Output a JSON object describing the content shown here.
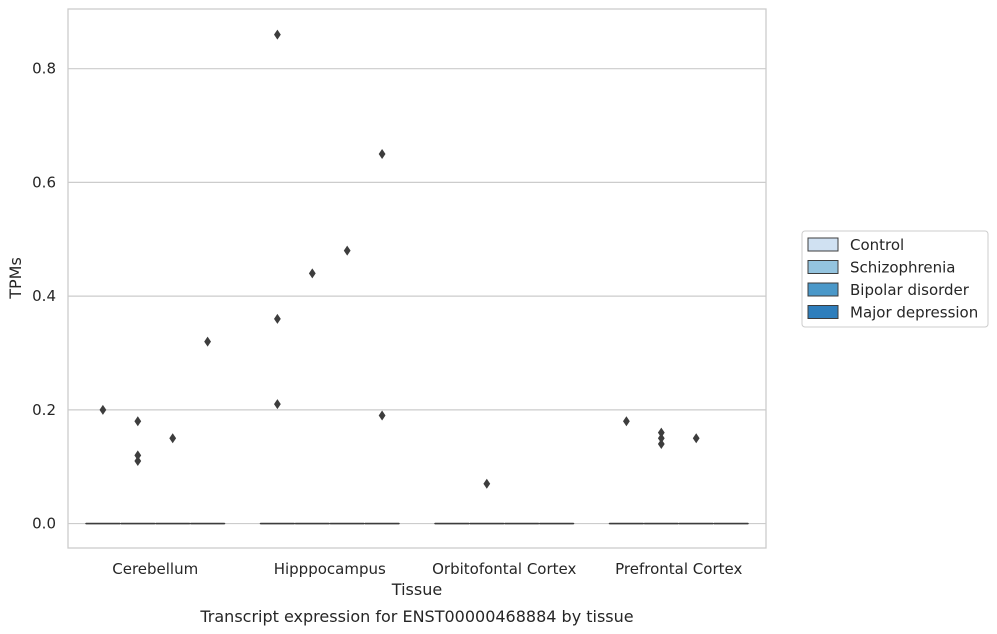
{
  "chart_data": {
    "type": "box",
    "title": "",
    "caption": "Transcript expression for ENST00000468884 by tissue",
    "xlabel": "Tissue",
    "ylabel": "TPMs",
    "categories": [
      "Cerebellum",
      "Hipppocampus",
      "Orbitofontal Cortex",
      "Prefrontal Cortex"
    ],
    "ylim": [
      -0.043,
      0.905
    ],
    "yticks": [
      0.0,
      0.2,
      0.4,
      0.6,
      0.8
    ],
    "ytick_labels": [
      "0.0",
      "0.2",
      "0.4",
      "0.6",
      "0.8"
    ],
    "grid": true,
    "legend_position": "right",
    "series": [
      {
        "name": "Control",
        "color": "#d0e1f2",
        "boxes": [
          {
            "median": 0,
            "q1": 0,
            "q3": 0
          },
          {
            "median": 0,
            "q1": 0,
            "q3": 0
          },
          {
            "median": 0,
            "q1": 0,
            "q3": 0
          },
          {
            "median": 0,
            "q1": 0,
            "q3": 0
          }
        ],
        "outliers": [
          [
            0.2
          ],
          [
            0.21,
            0.36,
            0.86
          ],
          [],
          [
            0.18
          ]
        ]
      },
      {
        "name": "Schizophrenia",
        "color": "#94c4df",
        "boxes": [
          {
            "median": 0,
            "q1": 0,
            "q3": 0
          },
          {
            "median": 0,
            "q1": 0,
            "q3": 0
          },
          {
            "median": 0,
            "q1": 0,
            "q3": 0
          },
          {
            "median": 0,
            "q1": 0,
            "q3": 0
          }
        ],
        "outliers": [
          [
            0.11,
            0.12,
            0.18
          ],
          [
            0.44
          ],
          [
            0.07
          ],
          [
            0.14,
            0.15,
            0.16
          ]
        ]
      },
      {
        "name": "Bipolar disorder",
        "color": "#4a98c9",
        "boxes": [
          {
            "median": 0,
            "q1": 0,
            "q3": 0
          },
          {
            "median": 0,
            "q1": 0,
            "q3": 0
          },
          {
            "median": 0,
            "q1": 0,
            "q3": 0
          },
          {
            "median": 0,
            "q1": 0,
            "q3": 0
          }
        ],
        "outliers": [
          [
            0.15
          ],
          [
            0.48
          ],
          [],
          [
            0.15
          ]
        ]
      },
      {
        "name": "Major depression",
        "color": "#2e7ebc",
        "boxes": [
          {
            "median": 0,
            "q1": 0,
            "q3": 0
          },
          {
            "median": 0,
            "q1": 0,
            "q3": 0
          },
          {
            "median": 0,
            "q1": 0,
            "q3": 0
          },
          {
            "median": 0,
            "q1": 0,
            "q3": 0
          }
        ],
        "outliers": [
          [
            0.32
          ],
          [
            0.19,
            0.65
          ],
          [],
          []
        ]
      }
    ]
  }
}
